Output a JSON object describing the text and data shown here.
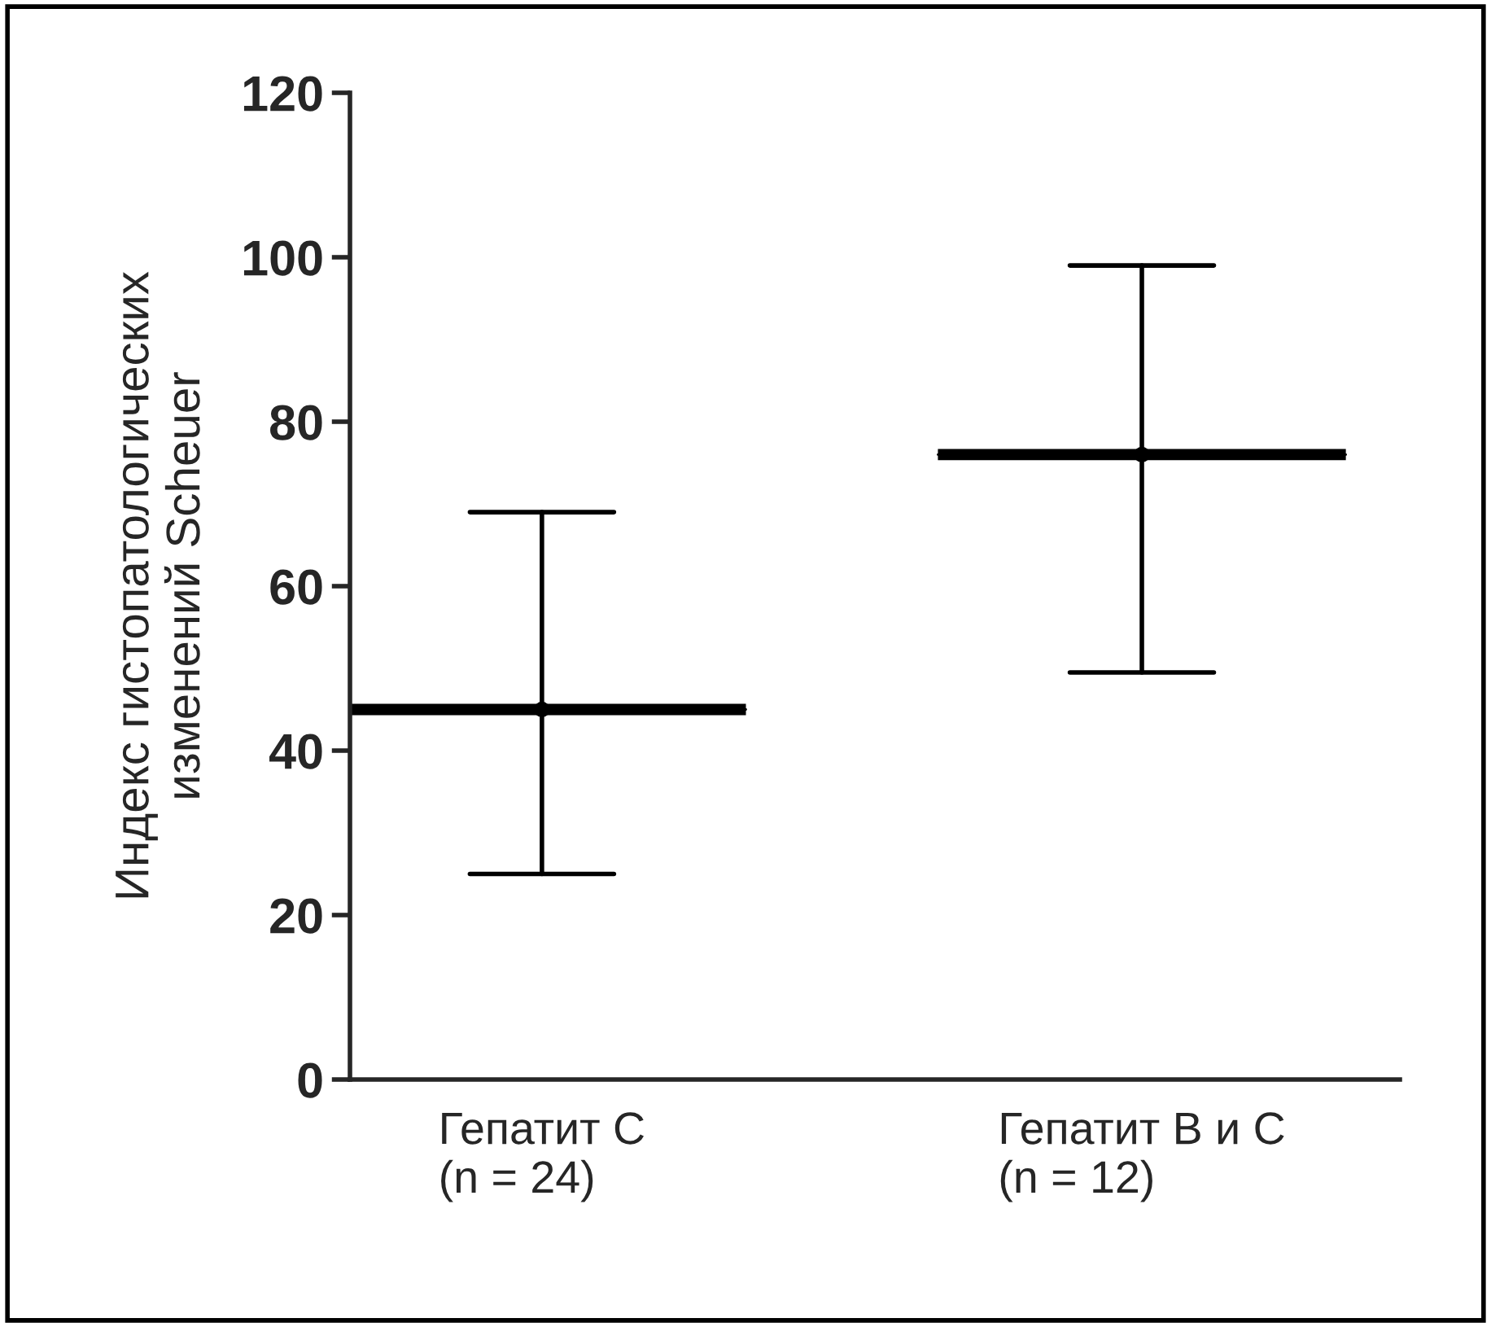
{
  "chart_data": {
    "type": "box",
    "ylabel": "Индекс гистопатологических\nизменений Scheuer",
    "categories": [
      "Гепатит С\n(n = 24)",
      "Гепатит В и С\n(n = 12)"
    ],
    "boxes": [
      {
        "low": 25,
        "q1": 45,
        "median": 45,
        "q3": 45,
        "high": 69,
        "mean": 45
      },
      {
        "low": 49.5,
        "q1": 76,
        "median": 76,
        "q3": 76,
        "high": 99,
        "mean": 76
      }
    ],
    "color": "#000000",
    "ylim": [
      0,
      120
    ],
    "yticks": [
      0,
      20,
      40,
      60,
      80,
      100,
      120
    ],
    "grid": false
  }
}
